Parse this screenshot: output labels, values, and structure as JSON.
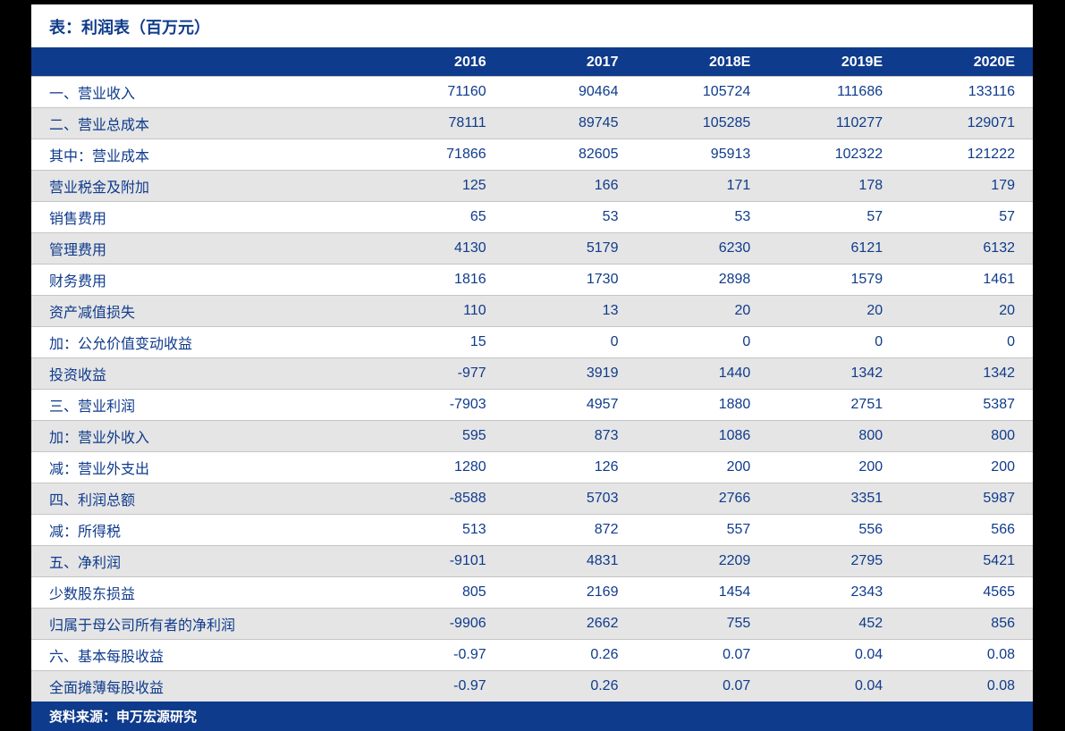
{
  "table": {
    "type": "table",
    "title": "表：利润表（百万元）",
    "footer": "资料来源：申万宏源研究",
    "background_color": "#ffffff",
    "header_bg_color": "#0f3b8c",
    "header_text_color": "#ffffff",
    "row_text_color": "#0f3b8c",
    "shaded_row_bg": "#e5e5e5",
    "plain_row_bg": "#ffffff",
    "border_color": "#c5c5c5",
    "title_color": "#0f3b8c",
    "title_fontsize": 18,
    "header_fontsize": 16,
    "cell_fontsize": 16,
    "columns": [
      "",
      "2016",
      "2017",
      "2018E",
      "2019E",
      "2020E"
    ],
    "column_widths": [
      "34%",
      "13.2%",
      "13.2%",
      "13.2%",
      "13.2%",
      "13.2%"
    ],
    "column_align": [
      "left",
      "right",
      "right",
      "right",
      "right",
      "right"
    ],
    "rows": [
      {
        "label": "一、营业收入",
        "values": [
          "71160",
          "90464",
          "105724",
          "111686",
          "133116"
        ],
        "shaded": false
      },
      {
        "label": "二、营业总成本",
        "values": [
          "78111",
          "89745",
          "105285",
          "110277",
          "129071"
        ],
        "shaded": true
      },
      {
        "label": "其中：营业成本",
        "values": [
          "71866",
          "82605",
          "95913",
          "102322",
          "121222"
        ],
        "shaded": false
      },
      {
        "label": "营业税金及附加",
        "values": [
          "125",
          "166",
          "171",
          "178",
          "179"
        ],
        "shaded": true
      },
      {
        "label": "销售费用",
        "values": [
          "65",
          "53",
          "53",
          "57",
          "57"
        ],
        "shaded": false
      },
      {
        "label": "管理费用",
        "values": [
          "4130",
          "5179",
          "6230",
          "6121",
          "6132"
        ],
        "shaded": true
      },
      {
        "label": "财务费用",
        "values": [
          "1816",
          "1730",
          "2898",
          "1579",
          "1461"
        ],
        "shaded": false
      },
      {
        "label": "资产减值损失",
        "values": [
          "110",
          "13",
          "20",
          "20",
          "20"
        ],
        "shaded": true
      },
      {
        "label": "加：公允价值变动收益",
        "values": [
          "15",
          "0",
          "0",
          "0",
          "0"
        ],
        "shaded": false
      },
      {
        "label": "投资收益",
        "values": [
          "-977",
          "3919",
          "1440",
          "1342",
          "1342"
        ],
        "shaded": true
      },
      {
        "label": "三、营业利润",
        "values": [
          "-7903",
          "4957",
          "1880",
          "2751",
          "5387"
        ],
        "shaded": false
      },
      {
        "label": "加：营业外收入",
        "values": [
          "595",
          "873",
          "1086",
          "800",
          "800"
        ],
        "shaded": true
      },
      {
        "label": "减：营业外支出",
        "values": [
          "1280",
          "126",
          "200",
          "200",
          "200"
        ],
        "shaded": false
      },
      {
        "label": "四、利润总额",
        "values": [
          "-8588",
          "5703",
          "2766",
          "3351",
          "5987"
        ],
        "shaded": true
      },
      {
        "label": "减：所得税",
        "values": [
          "513",
          "872",
          "557",
          "556",
          "566"
        ],
        "shaded": false
      },
      {
        "label": "五、净利润",
        "values": [
          "-9101",
          "4831",
          "2209",
          "2795",
          "5421"
        ],
        "shaded": true
      },
      {
        "label": "少数股东损益",
        "values": [
          "805",
          "2169",
          "1454",
          "2343",
          "4565"
        ],
        "shaded": false
      },
      {
        "label": "归属于母公司所有者的净利润",
        "values": [
          "-9906",
          "2662",
          "755",
          "452",
          "856"
        ],
        "shaded": true
      },
      {
        "label": "六、基本每股收益",
        "values": [
          "-0.97",
          "0.26",
          "0.07",
          "0.04",
          "0.08"
        ],
        "shaded": false
      },
      {
        "label": "全面摊薄每股收益",
        "values": [
          "-0.97",
          "0.26",
          "0.07",
          "0.04",
          "0.08"
        ],
        "shaded": true
      }
    ]
  }
}
